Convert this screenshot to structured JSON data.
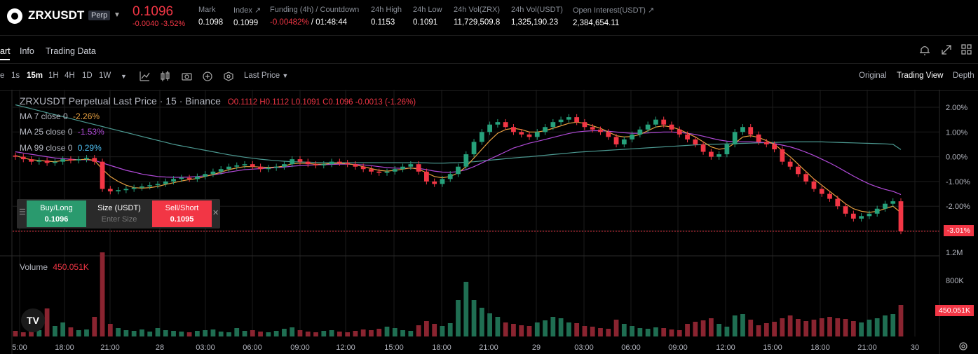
{
  "ticker": {
    "symbol": "ZRXUSDT",
    "badge": "Perp",
    "last_price": "0.1096",
    "change": "-0.0040 -3.52%",
    "stats": [
      {
        "label": "Mark",
        "value": "0.1098"
      },
      {
        "label": "Index ↗",
        "value": "0.1099"
      },
      {
        "label": "Funding (4h) / Countdown",
        "value_neg": "-0.00482%",
        "value": "/ 01:48:44"
      },
      {
        "label": "24h High",
        "value": "0.1153"
      },
      {
        "label": "24h Low",
        "value": "0.1091"
      },
      {
        "label": "24h Vol(ZRX)",
        "value": "11,729,509.8"
      },
      {
        "label": "24h Vol(USDT)",
        "value": "1,325,190.23"
      },
      {
        "label": "Open Interest(USDT) ↗",
        "value": "2,384,654.11"
      }
    ]
  },
  "tabs": [
    "art",
    "Info",
    "Trading Data"
  ],
  "toolbar": {
    "intervals": [
      "e",
      "1s",
      "15m",
      "1H",
      "4H",
      "1D",
      "1W"
    ],
    "selected_interval": "15m",
    "price_type": "Last Price",
    "views": [
      "Original",
      "Trading View",
      "Depth"
    ],
    "selected_view": "Trading View"
  },
  "legend": {
    "title": "ZRXUSDT Perpetual Last Price · 15 · Binance",
    "ohlc": "O0.1112  H0.1112  L0.1091  C0.1096  -0.0013 (-1.26%)",
    "ma7_label": "MA 7 close 0",
    "ma7_value": "-2.26%",
    "ma25_label": "MA 25 close 0",
    "ma25_value": "-1.53%",
    "ma99_label": "MA 99 close 0",
    "ma99_value": "0.29%",
    "volume_label": "Volume",
    "volume_value": "450.051K"
  },
  "order_panel": {
    "buy_label": "Buy/Long",
    "buy_price": "0.1096",
    "size_label": "Size (USDT)",
    "size_placeholder": "Enter Size",
    "sell_label": "Sell/Short",
    "sell_price": "0.1095"
  },
  "colors": {
    "up": "#26a17b",
    "down": "#f23645",
    "ma7": "#e8a040",
    "ma25": "#b14ad8",
    "ma99": "#4c9a92"
  },
  "chart_data": {
    "type": "candlestick",
    "price_axis": {
      "unit": "%",
      "ticks": [
        "2.00%",
        "1.00%",
        "0.00%",
        "-1.00%",
        "-2.00%",
        "-3.00%"
      ],
      "ylim": [
        -3.5,
        2.0
      ]
    },
    "current_badge": "-3.01%",
    "volume_axis": {
      "ticks": [
        "1.2M",
        "800K"
      ],
      "current_badge": "450.051K"
    },
    "x_ticks": [
      "5:00",
      "18:00",
      "21:00",
      "28",
      "03:00",
      "06:00",
      "09:00",
      "12:00",
      "15:00",
      "18:00",
      "21:00",
      "29",
      "03:00",
      "06:00",
      "09:00",
      "12:00",
      "15:00",
      "18:00",
      "21:00",
      "30"
    ],
    "close_pct": [
      0.0,
      -0.1,
      -0.2,
      -0.15,
      -0.25,
      -0.2,
      -0.1,
      -0.15,
      -0.1,
      -0.05,
      -0.2,
      -1.3,
      -1.4,
      -1.35,
      -1.3,
      -1.25,
      -1.2,
      -1.15,
      -1.1,
      -1.0,
      -0.9,
      -0.85,
      -0.9,
      -0.8,
      -0.7,
      -0.6,
      -0.5,
      -0.4,
      -0.35,
      -0.3,
      -0.4,
      -0.5,
      -0.45,
      -0.4,
      -0.3,
      -0.1,
      -0.2,
      -0.3,
      -0.35,
      -0.3,
      -0.2,
      -0.25,
      -0.3,
      -0.4,
      -0.5,
      -0.6,
      -0.65,
      -0.6,
      -0.5,
      -0.4,
      -0.3,
      -0.6,
      -1.0,
      -1.1,
      -0.9,
      -0.7,
      -0.4,
      0.1,
      0.6,
      1.0,
      1.3,
      1.4,
      1.2,
      1.0,
      0.9,
      0.8,
      1.0,
      1.2,
      1.4,
      1.5,
      1.6,
      1.4,
      1.2,
      1.1,
      1.0,
      0.8,
      0.5,
      0.7,
      0.9,
      1.1,
      1.3,
      1.5,
      1.3,
      1.1,
      0.9,
      0.7,
      0.5,
      0.2,
      0.0,
      0.1,
      0.5,
      1.0,
      1.2,
      0.9,
      0.6,
      0.5,
      0.3,
      -0.2,
      -0.4,
      -0.7,
      -1.0,
      -1.3,
      -1.5,
      -1.7,
      -2.0,
      -2.3,
      -2.5,
      -2.4,
      -2.3,
      -2.1,
      -1.9,
      -1.8,
      -3.01
    ],
    "ma7_pct": [
      0.05,
      -0.05,
      -0.12,
      -0.15,
      -0.18,
      -0.2,
      -0.15,
      -0.14,
      -0.12,
      -0.1,
      -0.15,
      -0.5,
      -0.8,
      -1.0,
      -1.15,
      -1.25,
      -1.27,
      -1.25,
      -1.2,
      -1.12,
      -1.05,
      -0.98,
      -0.92,
      -0.88,
      -0.8,
      -0.72,
      -0.62,
      -0.52,
      -0.45,
      -0.4,
      -0.4,
      -0.42,
      -0.43,
      -0.42,
      -0.38,
      -0.28,
      -0.26,
      -0.27,
      -0.3,
      -0.3,
      -0.27,
      -0.26,
      -0.28,
      -0.33,
      -0.4,
      -0.48,
      -0.55,
      -0.58,
      -0.55,
      -0.5,
      -0.45,
      -0.5,
      -0.65,
      -0.8,
      -0.85,
      -0.8,
      -0.65,
      -0.4,
      -0.05,
      0.3,
      0.65,
      0.95,
      1.1,
      1.15,
      1.1,
      1.0,
      1.0,
      1.05,
      1.15,
      1.25,
      1.35,
      1.4,
      1.35,
      1.25,
      1.15,
      1.0,
      0.85,
      0.8,
      0.82,
      0.9,
      1.05,
      1.2,
      1.25,
      1.2,
      1.1,
      0.95,
      0.8,
      0.6,
      0.4,
      0.3,
      0.35,
      0.55,
      0.8,
      0.85,
      0.78,
      0.65,
      0.5,
      0.25,
      0.0,
      -0.3,
      -0.6,
      -0.9,
      -1.15,
      -1.4,
      -1.65,
      -1.9,
      -2.1,
      -2.2,
      -2.25,
      -2.2,
      -2.1,
      -2.0,
      -2.26
    ],
    "ma25_pct": [
      0.2,
      0.15,
      0.1,
      0.05,
      0.0,
      -0.05,
      -0.08,
      -0.1,
      -0.12,
      -0.12,
      -0.15,
      -0.25,
      -0.35,
      -0.45,
      -0.55,
      -0.62,
      -0.7,
      -0.75,
      -0.8,
      -0.82,
      -0.83,
      -0.83,
      -0.82,
      -0.8,
      -0.77,
      -0.73,
      -0.68,
      -0.62,
      -0.57,
      -0.52,
      -0.5,
      -0.48,
      -0.46,
      -0.44,
      -0.42,
      -0.38,
      -0.36,
      -0.34,
      -0.33,
      -0.32,
      -0.31,
      -0.3,
      -0.3,
      -0.31,
      -0.33,
      -0.36,
      -0.4,
      -0.44,
      -0.46,
      -0.47,
      -0.46,
      -0.47,
      -0.52,
      -0.58,
      -0.62,
      -0.63,
      -0.6,
      -0.52,
      -0.4,
      -0.25,
      -0.1,
      0.05,
      0.2,
      0.35,
      0.45,
      0.55,
      0.62,
      0.7,
      0.78,
      0.86,
      0.94,
      1.0,
      1.03,
      1.05,
      1.05,
      1.03,
      1.0,
      0.97,
      0.95,
      0.95,
      0.96,
      0.98,
      1.0,
      1.0,
      0.98,
      0.95,
      0.9,
      0.83,
      0.75,
      0.68,
      0.63,
      0.6,
      0.6,
      0.6,
      0.59,
      0.57,
      0.53,
      0.47,
      0.4,
      0.3,
      0.18,
      0.05,
      -0.1,
      -0.25,
      -0.42,
      -0.6,
      -0.78,
      -0.95,
      -1.1,
      -1.22,
      -1.32,
      -1.4,
      -1.53
    ],
    "ma99_pct": [
      2.1,
      2.02,
      1.94,
      1.86,
      1.78,
      1.7,
      1.62,
      1.54,
      1.46,
      1.38,
      1.3,
      1.22,
      1.14,
      1.06,
      0.98,
      0.9,
      0.82,
      0.74,
      0.66,
      0.58,
      0.5,
      0.44,
      0.38,
      0.32,
      0.26,
      0.2,
      0.14,
      0.08,
      0.03,
      -0.02,
      -0.06,
      -0.1,
      -0.13,
      -0.16,
      -0.18,
      -0.2,
      -0.21,
      -0.22,
      -0.23,
      -0.24,
      -0.24,
      -0.24,
      -0.24,
      -0.24,
      -0.24,
      -0.24,
      -0.24,
      -0.24,
      -0.24,
      -0.24,
      -0.24,
      -0.24,
      -0.25,
      -0.26,
      -0.26,
      -0.25,
      -0.24,
      -0.22,
      -0.2,
      -0.17,
      -0.14,
      -0.11,
      -0.08,
      -0.05,
      -0.02,
      0.0,
      0.03,
      0.06,
      0.09,
      0.12,
      0.15,
      0.18,
      0.2,
      0.22,
      0.24,
      0.26,
      0.28,
      0.3,
      0.32,
      0.34,
      0.36,
      0.38,
      0.4,
      0.42,
      0.44,
      0.46,
      0.48,
      0.49,
      0.5,
      0.51,
      0.52,
      0.53,
      0.54,
      0.55,
      0.56,
      0.57,
      0.58,
      0.59,
      0.6,
      0.6,
      0.6,
      0.6,
      0.6,
      0.59,
      0.58,
      0.57,
      0.56,
      0.55,
      0.54,
      0.53,
      0.52,
      0.5,
      0.29
    ],
    "volume_k": [
      80,
      60,
      120,
      90,
      400,
      150,
      200,
      130,
      90,
      100,
      280,
      1200,
      180,
      120,
      90,
      80,
      100,
      70,
      120,
      90,
      80,
      70,
      60,
      80,
      90,
      100,
      70,
      60,
      120,
      80,
      90,
      70,
      60,
      80,
      110,
      130,
      90,
      70,
      60,
      80,
      90,
      70,
      60,
      80,
      100,
      90,
      110,
      140,
      120,
      90,
      80,
      160,
      220,
      180,
      150,
      190,
      520,
      780,
      520,
      410,
      330,
      280,
      200,
      180,
      160,
      150,
      200,
      230,
      280,
      260,
      200,
      190,
      150,
      140,
      120,
      110,
      240,
      180,
      150,
      120,
      110,
      130,
      120,
      100,
      90,
      180,
      210,
      230,
      260,
      180,
      140,
      300,
      320,
      240,
      160,
      190,
      210,
      260,
      300,
      250,
      220,
      240,
      260,
      280,
      260,
      250,
      220,
      200,
      240,
      260,
      300,
      320,
      450
    ]
  }
}
